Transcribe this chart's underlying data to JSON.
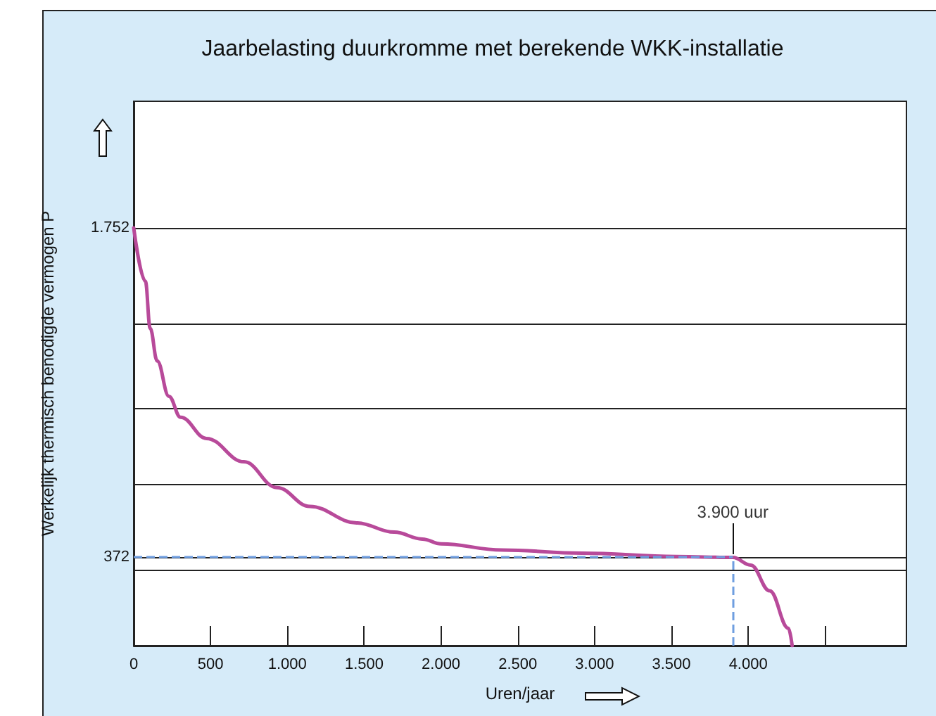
{
  "chart_data": {
    "type": "line",
    "title": "Jaarbelasting duurkromme met berekende WKK-installatie",
    "xlabel": "Uren/jaar",
    "ylabel": "Werkelijk thermisch benodigde vermogen P",
    "x": [
      0,
      76,
      107,
      153,
      229,
      305,
      474,
      718,
      932,
      1146,
      1451,
      1696,
      1879,
      2001,
      2398,
      2918,
      3529,
      3900,
      4017,
      4140,
      4262,
      4286
    ],
    "series": [
      {
        "color": "#b84a9a",
        "values": [
          1752,
          1528,
          1331,
          1194,
          1046,
          958,
          869,
          771,
          663,
          584,
          515,
          476,
          447,
          427,
          401,
          388,
          374,
          370,
          338,
          230,
          73,
          0
        ]
      }
    ],
    "xlim": [
      0,
      5030
    ],
    "ylim": [
      0,
      2283
    ],
    "xticks": [
      0,
      500,
      {
        "value": 1000,
        "label": "1.000"
      },
      {
        "value": 1500,
        "label": "1.500"
      },
      {
        "value": 2000,
        "label": "2.000"
      },
      {
        "value": 2500,
        "label": "2.500"
      },
      {
        "value": 3000,
        "label": "3.000"
      },
      {
        "value": 3500,
        "label": "3.500"
      },
      {
        "value": 4000,
        "label": "4.000"
      },
      {
        "value": 4500,
        "label": null
      }
    ],
    "yticks": [
      {
        "value": 315,
        "label": null
      },
      {
        "value": 372,
        "label": "372"
      },
      {
        "value": 675,
        "label": null
      },
      {
        "value": 995,
        "label": null
      },
      {
        "value": 1350,
        "label": null
      },
      {
        "value": 1752,
        "label": "1.752"
      }
    ],
    "grid": "y",
    "marker": "none",
    "line_style": "solid",
    "ref_lines": [
      {
        "axis": "x",
        "value": 3900,
        "color": "#6f9ee0",
        "line_style": "dashed"
      },
      {
        "axis": "y",
        "value": 372,
        "color": "#6f9ee0",
        "line_style": "dashed"
      }
    ],
    "annotations": [
      {
        "text": "3.900 uur",
        "x": 3900,
        "y": 372
      }
    ]
  }
}
